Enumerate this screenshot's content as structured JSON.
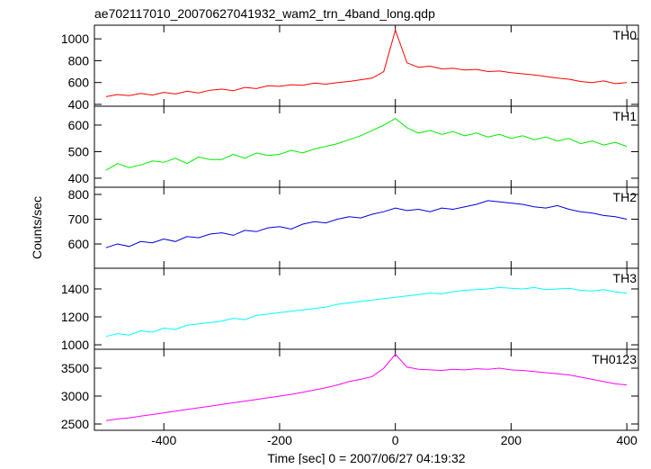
{
  "chart_data": [
    {
      "type": "line",
      "title": "ae702117010_20070627041932_wam2_trn_4band_long.qdp",
      "x": [
        -500,
        -480,
        -460,
        -440,
        -420,
        -400,
        -380,
        -360,
        -340,
        -320,
        -300,
        -280,
        -260,
        -240,
        -220,
        -200,
        -180,
        -160,
        -140,
        -120,
        -100,
        -80,
        -60,
        -40,
        -20,
        0,
        20,
        40,
        60,
        80,
        100,
        120,
        140,
        160,
        180,
        200,
        220,
        240,
        260,
        280,
        300,
        320,
        340,
        360,
        380,
        400
      ],
      "xlim": [
        -520,
        420
      ],
      "xticks": [
        -400,
        -200,
        0,
        200,
        400
      ],
      "ylim": [
        383,
        1125
      ],
      "yticks": [
        400,
        600,
        800,
        1000
      ],
      "series": [
        {
          "name": "TH0",
          "color": "#ff0000",
          "values": [
            470,
            490,
            480,
            500,
            485,
            510,
            495,
            520,
            505,
            530,
            540,
            525,
            555,
            545,
            570,
            565,
            580,
            575,
            595,
            585,
            600,
            610,
            625,
            640,
            700,
            1080,
            780,
            740,
            750,
            725,
            730,
            715,
            720,
            700,
            705,
            690,
            680,
            670,
            655,
            640,
            630,
            610,
            600,
            615,
            590,
            600
          ]
        }
      ]
    },
    {
      "type": "line",
      "x": [
        -500,
        -480,
        -460,
        -440,
        -420,
        -400,
        -380,
        -360,
        -340,
        -320,
        -300,
        -280,
        -260,
        -240,
        -220,
        -200,
        -180,
        -160,
        -140,
        -120,
        -100,
        -80,
        -60,
        -40,
        -20,
        0,
        20,
        40,
        60,
        80,
        100,
        120,
        140,
        160,
        180,
        200,
        220,
        240,
        260,
        280,
        300,
        320,
        340,
        360,
        380,
        400
      ],
      "xlim": [
        -520,
        420
      ],
      "xticks": [
        -400,
        -200,
        0,
        200,
        400
      ],
      "ylim": [
        366,
        671
      ],
      "yticks": [
        400,
        500,
        600
      ],
      "series": [
        {
          "name": "TH1",
          "color": "#00ee00",
          "values": [
            430,
            455,
            440,
            450,
            465,
            460,
            475,
            455,
            480,
            470,
            470,
            490,
            475,
            495,
            485,
            490,
            505,
            495,
            510,
            520,
            530,
            545,
            560,
            580,
            600,
            625,
            590,
            570,
            580,
            565,
            575,
            560,
            570,
            555,
            565,
            550,
            560,
            545,
            555,
            540,
            550,
            530,
            540,
            525,
            535,
            520
          ]
        }
      ]
    },
    {
      "type": "line",
      "y_label": "Counts/sec",
      "x": [
        -500,
        -480,
        -460,
        -440,
        -420,
        -400,
        -380,
        -360,
        -340,
        -320,
        -300,
        -280,
        -260,
        -240,
        -220,
        -200,
        -180,
        -160,
        -140,
        -120,
        -100,
        -80,
        -60,
        -40,
        -20,
        0,
        20,
        40,
        60,
        80,
        100,
        120,
        140,
        160,
        180,
        200,
        220,
        240,
        260,
        280,
        300,
        320,
        340,
        360,
        380,
        400
      ],
      "xlim": [
        -520,
        420
      ],
      "xticks": [
        -400,
        -200,
        0,
        200,
        400
      ],
      "ylim": [
        502,
        829
      ],
      "yticks": [
        600,
        700,
        800
      ],
      "series": [
        {
          "name": "TH2",
          "color": "#0000e0",
          "values": [
            585,
            600,
            590,
            610,
            605,
            620,
            610,
            630,
            625,
            640,
            645,
            635,
            655,
            650,
            665,
            670,
            660,
            680,
            690,
            685,
            700,
            710,
            705,
            720,
            730,
            745,
            735,
            740,
            730,
            745,
            740,
            750,
            760,
            775,
            770,
            765,
            760,
            750,
            745,
            755,
            740,
            730,
            725,
            715,
            710,
            700
          ]
        }
      ]
    },
    {
      "type": "line",
      "x": [
        -500,
        -480,
        -460,
        -440,
        -420,
        -400,
        -380,
        -360,
        -340,
        -320,
        -300,
        -280,
        -260,
        -240,
        -220,
        -200,
        -180,
        -160,
        -140,
        -120,
        -100,
        -80,
        -60,
        -40,
        -20,
        0,
        20,
        40,
        60,
        80,
        100,
        120,
        140,
        160,
        180,
        200,
        220,
        240,
        260,
        280,
        300,
        320,
        340,
        360,
        380,
        400
      ],
      "xlim": [
        -520,
        420
      ],
      "xticks": [
        -400,
        -200,
        0,
        200,
        400
      ],
      "ylim": [
        968,
        1548
      ],
      "yticks": [
        1000,
        1200,
        1400
      ],
      "series": [
        {
          "name": "TH3",
          "color": "#00ffff",
          "values": [
            1060,
            1080,
            1070,
            1100,
            1090,
            1120,
            1110,
            1140,
            1150,
            1160,
            1170,
            1190,
            1180,
            1210,
            1220,
            1230,
            1240,
            1250,
            1260,
            1270,
            1290,
            1300,
            1310,
            1320,
            1330,
            1340,
            1350,
            1360,
            1370,
            1365,
            1380,
            1390,
            1395,
            1400,
            1410,
            1405,
            1400,
            1410,
            1395,
            1400,
            1405,
            1390,
            1385,
            1395,
            1380,
            1370
          ]
        }
      ]
    },
    {
      "type": "line",
      "x_label": "Time [sec] 0 = 2007/06/27 04:19:32",
      "x": [
        -500,
        -480,
        -460,
        -440,
        -420,
        -400,
        -380,
        -360,
        -340,
        -320,
        -300,
        -280,
        -260,
        -240,
        -220,
        -200,
        -180,
        -160,
        -140,
        -120,
        -100,
        -80,
        -60,
        -40,
        -20,
        0,
        20,
        40,
        60,
        80,
        100,
        120,
        140,
        160,
        180,
        200,
        220,
        240,
        260,
        280,
        300,
        320,
        340,
        360,
        380,
        400
      ],
      "xlim": [
        -520,
        420
      ],
      "xticks": [
        -400,
        -200,
        0,
        200,
        400
      ],
      "ylim": [
        2387,
        3839
      ],
      "yticks": [
        2500,
        3000,
        3500
      ],
      "series": [
        {
          "name": "TH0123",
          "color": "#ff00ff",
          "values": [
            2560,
            2590,
            2610,
            2640,
            2670,
            2700,
            2730,
            2760,
            2790,
            2820,
            2850,
            2880,
            2910,
            2940,
            2970,
            3000,
            3030,
            3070,
            3110,
            3150,
            3200,
            3260,
            3300,
            3350,
            3500,
            3750,
            3520,
            3480,
            3470,
            3460,
            3480,
            3470,
            3490,
            3480,
            3500,
            3470,
            3460,
            3440,
            3420,
            3400,
            3380,
            3340,
            3300,
            3260,
            3220,
            3200
          ]
        }
      ]
    }
  ]
}
